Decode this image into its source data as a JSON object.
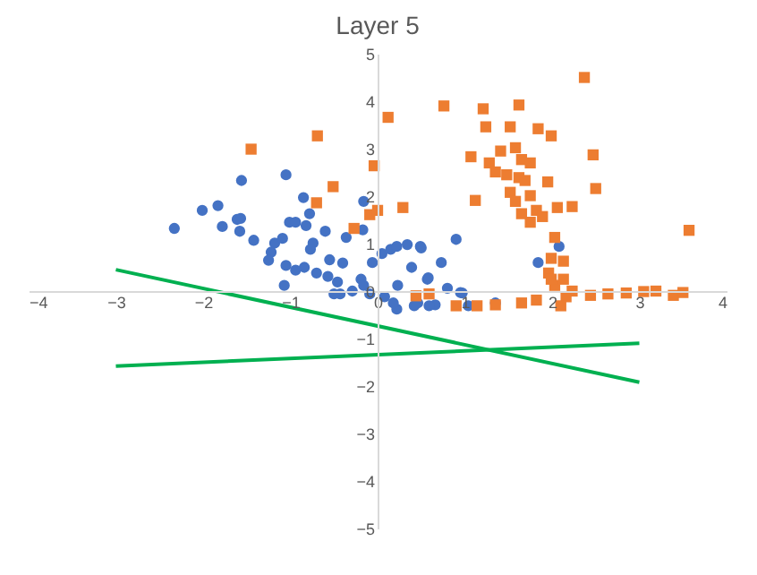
{
  "chart_data": {
    "type": "scatter",
    "title": "Layer 5",
    "xlim": [
      -4,
      4
    ],
    "ylim": [
      -5,
      5
    ],
    "xticks": [
      -4,
      -3,
      -2,
      -1,
      0,
      1,
      2,
      3,
      4
    ],
    "yticks": [
      -5,
      -4,
      -3,
      -2,
      -1,
      0,
      1,
      2,
      3,
      4,
      5
    ],
    "grid": false,
    "series": [
      {
        "marker": "circle",
        "color": "#4472c4",
        "x": [
          -2.33,
          -2.01,
          -1.83,
          -1.56,
          -1.05,
          -1.61,
          -1.57,
          -1.78,
          -1.58,
          -1.42,
          -1.18,
          -1.09,
          -1.22,
          -1.25,
          -1.05,
          -1.07,
          -0.85,
          -1.01,
          -0.94,
          -0.78,
          -0.82,
          -0.74,
          -0.77,
          -0.84,
          -0.94,
          -0.7,
          -0.6,
          -0.55,
          -0.4,
          -0.57,
          -0.46,
          -0.43,
          -0.36,
          -0.17,
          -0.16,
          -0.06,
          0.05,
          -0.19,
          -0.09,
          0.08,
          0.15,
          0.22,
          0.34,
          0.39,
          0.23,
          0.49,
          0.57,
          0.22,
          0.46,
          -0.5,
          -0.29,
          -0.16,
          0.9,
          0.5,
          0.73,
          0.58,
          0.95,
          1.84,
          2.08,
          1.04,
          1.35,
          0.97,
          0.8,
          0.66,
          0.42,
          0.59,
          0.18
        ],
        "values": [
          1.32,
          1.7,
          1.8,
          2.33,
          2.45,
          1.51,
          1.53,
          1.36,
          1.26,
          1.07,
          1.01,
          1.11,
          0.82,
          0.65,
          0.54,
          0.12,
          1.97,
          1.45,
          1.45,
          1.63,
          1.38,
          1.01,
          0.88,
          0.5,
          0.44,
          0.38,
          1.26,
          0.66,
          0.59,
          0.31,
          0.19,
          -0.06,
          1.13,
          1.29,
          1.89,
          0.6,
          0.79,
          0.25,
          -0.06,
          -0.12,
          0.88,
          0.94,
          0.98,
          0.5,
          0.12,
          0.94,
          0.25,
          -0.38,
          -0.25,
          -0.06,
          0,
          0.12,
          1.09,
          0.91,
          0.6,
          0.28,
          -0.03,
          0.6,
          0.94,
          -0.31,
          -0.25,
          -0.04,
          0.06,
          -0.29,
          -0.31,
          -0.31,
          -0.25
        ]
      },
      {
        "marker": "square",
        "color": "#ed7d31",
        "x": [
          -1.45,
          -0.69,
          -0.04,
          -0.51,
          -0.7,
          -0.09,
          0,
          0.29,
          -0.27,
          0.44,
          0.12,
          2.37,
          0.76,
          1.21,
          1.62,
          1.24,
          1.52,
          1.84,
          1.99,
          1.07,
          2.47,
          2.5,
          1.12,
          3.57,
          2.06,
          2.23,
          1.95,
          1.28,
          1.41,
          1.58,
          1.35,
          1.48,
          1.65,
          1.75,
          1.62,
          1.69,
          1.52,
          1.58,
          1.75,
          1.65,
          1.82,
          1.75,
          1.89,
          2.03,
          1.99,
          2.13,
          1.96,
          2.13,
          2.03,
          0.9,
          1.14,
          1.35,
          1.65,
          1.82,
          2.16,
          2.23,
          2.44,
          2.64,
          2.85,
          3.05,
          3.19,
          3.39,
          3.5,
          0.59,
          2.1,
          1.99
        ],
        "values": [
          2.99,
          3.27,
          2.64,
          2.2,
          1.86,
          1.61,
          1.7,
          1.76,
          1.32,
          -0.1,
          3.66,
          4.5,
          3.9,
          3.84,
          3.92,
          3.46,
          3.46,
          3.42,
          3.27,
          2.83,
          2.87,
          2.16,
          1.91,
          1.28,
          1.76,
          1.78,
          2.3,
          2.7,
          2.95,
          3.02,
          2.51,
          2.45,
          2.77,
          2.7,
          2.39,
          2.33,
          2.08,
          1.89,
          2.01,
          1.63,
          1.7,
          1.45,
          1.57,
          1.13,
          0.69,
          0.63,
          0.38,
          0.25,
          0.12,
          -0.31,
          -0.31,
          -0.29,
          -0.25,
          -0.19,
          -0.12,
          0,
          -0.09,
          -0.06,
          -0.04,
          -0.01,
          0,
          -0.09,
          -0.03,
          -0.06,
          -0.31,
          0.25
        ]
      },
      {
        "type": "line",
        "line_style": "solid",
        "color": "#00b050",
        "x": [
          -3,
          3
        ],
        "values": [
          0.45,
          -1.92
        ]
      },
      {
        "type": "line",
        "line_style": "solid",
        "color": "#00b050",
        "x": [
          -3,
          3
        ],
        "values": [
          -1.58,
          -1.1
        ]
      }
    ]
  }
}
